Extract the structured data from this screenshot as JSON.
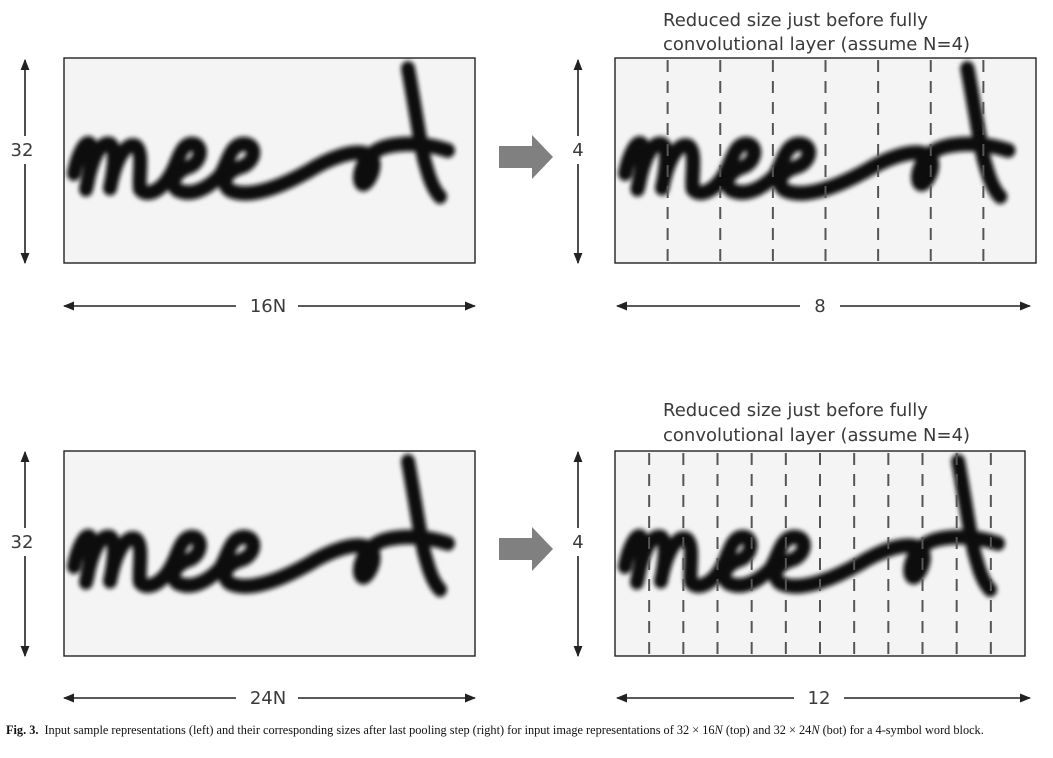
{
  "panels": [
    {
      "height_label": "32",
      "width_label": "16N",
      "word": "meet",
      "reduced": {
        "title_line1": "Reduced size just before fully",
        "title_line2": "convolutional layer (assume N=4)",
        "height_label": "4",
        "width_label": "8",
        "columns": 8
      }
    },
    {
      "height_label": "32",
      "width_label": "24N",
      "word": "meet",
      "reduced": {
        "title_line1": "Reduced size just before fully",
        "title_line2": "convolutional layer  (assume N=4)",
        "height_label": "4",
        "width_label": "12",
        "columns": 12
      }
    }
  ],
  "caption": {
    "label": "Fig. 3.",
    "parts": [
      {
        "text": "Input sample representations (left) and their corresponding sizes after last pooling step (right) for input image representations of 32 × 16",
        "italic": false
      },
      {
        "text": "N",
        "italic": true
      },
      {
        "text": " (top) and 32 × 24",
        "italic": false
      },
      {
        "text": "N",
        "italic": true
      },
      {
        "text": " (bot) for a 4-symbol word block.",
        "italic": false
      }
    ]
  }
}
